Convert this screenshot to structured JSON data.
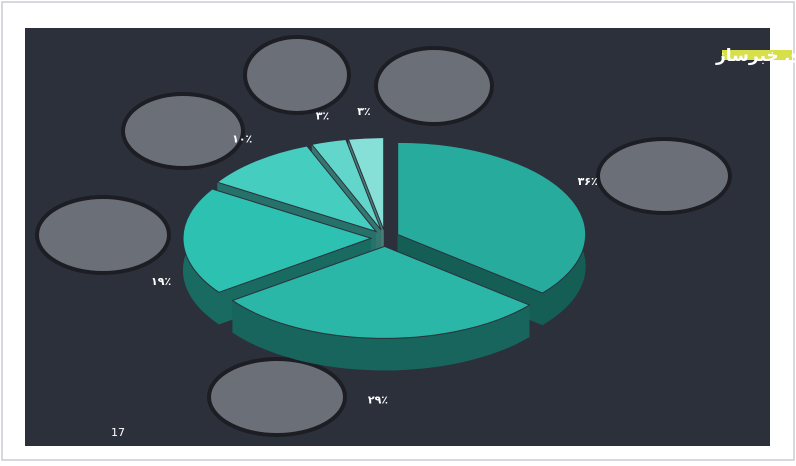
{
  "chart_data": {
    "type": "pie",
    "title": "شخصیت‌های خبرساز",
    "values": [
      36,
      29,
      19,
      10,
      3,
      3
    ],
    "value_labels": [
      "۳۶٪",
      "۲۹٪",
      "۱۹٪",
      "۱۰٪",
      "۳٪",
      "۳٪"
    ],
    "colors": [
      "#27ab9d",
      "#2ab7a7",
      "#2dc1b1",
      "#45cdc0",
      "#62d6cb",
      "#86e0d7"
    ],
    "page_number": "17"
  }
}
